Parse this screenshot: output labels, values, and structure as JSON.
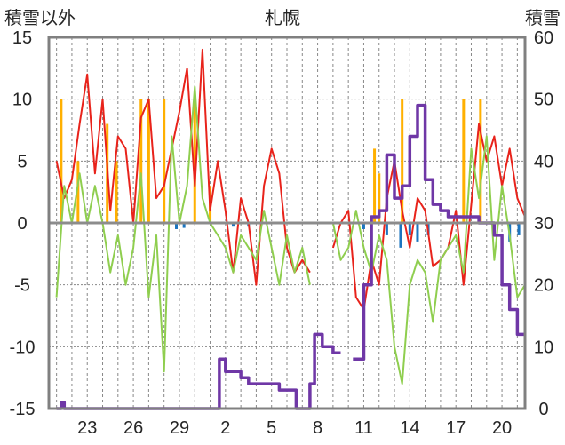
{
  "chart_data": {
    "type": "line",
    "title": "札幌",
    "ylabel_left": "積雪以外",
    "ylabel_right": "積雪",
    "ylim_left": [
      -15,
      15
    ],
    "ylim_right": [
      0,
      60
    ],
    "yticks_left": [
      "15",
      "10",
      "5",
      "0",
      "-5",
      "-10",
      "-15"
    ],
    "yticks_right": [
      "60",
      "50",
      "40",
      "30",
      "20",
      "10",
      "0"
    ],
    "x_tick_labels": [
      "23",
      "26",
      "29",
      "2",
      "5",
      "8",
      "11",
      "14",
      "17",
      "20"
    ],
    "x_tick_days": [
      2,
      5,
      8,
      11,
      14,
      17,
      20,
      23,
      26,
      29
    ],
    "days_total": 31,
    "grid": true,
    "colors": {
      "red": "#e8231b",
      "green": "#8fce4f",
      "purple": "#6f37a6",
      "orange": "#ffb000",
      "blue": "#1b75c0",
      "grid": "#888888",
      "frame": "#808080",
      "zero": "#8c8c8c"
    },
    "series": [
      {
        "color": "red",
        "axis": "left",
        "x": [
          0.0,
          0.5,
          1.0,
          1.5,
          2.0,
          2.5,
          3.0,
          3.5,
          4.0,
          4.5,
          5.0,
          5.5,
          6.0,
          6.5,
          7.0,
          7.5,
          8.0,
          8.5,
          9.0,
          9.5,
          10.0,
          10.5,
          11.0,
          11.5,
          12.0,
          12.5,
          13.0,
          13.5,
          14.0,
          14.5,
          15.0,
          15.5,
          16.0,
          16.5,
          17.0,
          17.5,
          18.0,
          18.5,
          19.0,
          19.5,
          20.0,
          20.5,
          21.0,
          21.5,
          22.0,
          22.5,
          23.0,
          23.5,
          24.0,
          24.5,
          25.0,
          25.5,
          26.0,
          26.5,
          27.0,
          27.5,
          28.0,
          28.5,
          29.0,
          29.5,
          30.0,
          30.5
        ],
        "y": [
          5.0,
          2.0,
          3.5,
          8.0,
          12.0,
          4.0,
          10.0,
          1.0,
          7.0,
          6.0,
          0.0,
          8.5,
          10.0,
          2.0,
          3.0,
          6.0,
          9.0,
          12.5,
          3.0,
          14.0,
          1.0,
          5.0,
          1.0,
          -4.0,
          2.0,
          0.0,
          -5.0,
          3.0,
          6.0,
          4.0,
          -2.0,
          -4.0,
          -3.0,
          -4.0,
          null,
          null,
          -2.0,
          0.0,
          1.0,
          -6.0,
          -7.0,
          -3.0,
          -5.0,
          2.0,
          5.0,
          1.0,
          -2.0,
          2.0,
          1.0,
          -3.5,
          -3.0,
          -2.0,
          1.0,
          -5.0,
          1.5,
          8.0,
          5.0,
          7.0,
          3.0,
          6.0,
          2.0,
          0.5
        ]
      },
      {
        "color": "green",
        "axis": "left",
        "x": [
          0.0,
          0.5,
          1.0,
          1.5,
          2.0,
          2.5,
          3.0,
          3.5,
          4.0,
          4.5,
          5.0,
          5.5,
          6.0,
          6.5,
          7.0,
          7.5,
          8.0,
          8.5,
          9.0,
          9.5,
          10.0,
          10.5,
          11.0,
          11.5,
          12.0,
          12.5,
          13.0,
          13.5,
          14.0,
          14.5,
          15.0,
          15.5,
          16.0,
          16.5,
          17.0,
          17.5,
          18.0,
          18.5,
          19.0,
          19.5,
          20.0,
          20.5,
          21.0,
          21.5,
          22.0,
          22.5,
          23.0,
          23.5,
          24.0,
          24.5,
          25.0,
          25.5,
          26.0,
          26.5,
          27.0,
          27.5,
          28.0,
          28.5,
          29.0,
          29.5,
          30.0,
          30.5
        ],
        "y": [
          -6.0,
          3.0,
          0.0,
          4.0,
          0.0,
          3.0,
          0.0,
          -4.0,
          -1.0,
          -5.0,
          -2.0,
          4.0,
          -6.0,
          -1.0,
          -12.0,
          7.0,
          0.0,
          3.0,
          11.0,
          2.0,
          0.0,
          -1.0,
          -2.0,
          -4.0,
          -1.0,
          -2.0,
          -3.0,
          1.0,
          -2.0,
          -5.0,
          -1.0,
          -4.0,
          -2.0,
          -5.0,
          null,
          null,
          0.0,
          -3.0,
          -2.0,
          1.0,
          -2.0,
          -4.0,
          -1.0,
          -3.0,
          -10.0,
          -13.0,
          -5.0,
          -3.0,
          -4.0,
          -8.0,
          -3.0,
          -2.0,
          -1.0,
          -4.0,
          6.0,
          2.0,
          7.0,
          -3.0,
          3.0,
          -1.0,
          -6.0,
          -5.0
        ]
      },
      {
        "color": "purple",
        "axis": "right",
        "x": [
          0.0,
          0.3,
          0.5,
          10.5,
          10.6,
          11.0,
          12.0,
          12.5,
          14.0,
          14.5,
          15.0,
          15.6,
          16.2,
          16.5,
          16.8,
          17.3,
          17.6,
          18.0,
          18.5,
          19.0,
          19.3,
          20.0,
          20.5,
          21.0,
          21.5,
          22.0,
          22.5,
          23.0,
          23.5,
          24.0,
          24.5,
          25.0,
          25.5,
          26.0,
          26.5,
          27.0,
          27.5,
          28.0,
          28.5,
          29.0,
          29.5,
          30.0,
          30.5
        ],
        "y": [
          0.0,
          1.0,
          0.0,
          0.0,
          8.0,
          6.0,
          5.0,
          4.0,
          4.0,
          3.0,
          3.0,
          0.0,
          0.0,
          4.0,
          12.0,
          10.0,
          10.0,
          9.0,
          9.0,
          null,
          8.0,
          20.0,
          31.0,
          32.0,
          41.0,
          34.0,
          36.0,
          44.0,
          49.0,
          37.0,
          33.0,
          32.0,
          31.0,
          31.0,
          31.0,
          31.0,
          30.0,
          30.0,
          28.0,
          20.0,
          16.0,
          12.0,
          12.0
        ]
      }
    ],
    "bars_orange": {
      "axis": "left",
      "x": [
        0.3,
        1.4,
        3.3,
        3.9,
        5.5,
        6.0,
        7.0,
        9.0,
        10.0,
        20.7,
        21.0,
        22.5,
        26.5,
        27.6
      ],
      "y": [
        10.0,
        5.0,
        8.0,
        5.0,
        10.0,
        10.0,
        10.0,
        10.0,
        3.0,
        6.0,
        4.0,
        10.0,
        10.0,
        10.0
      ]
    },
    "bars_blue": {
      "axis": "left",
      "x": [
        7.8,
        8.3,
        11.5,
        12.5,
        20.0,
        21.5,
        22.4,
        23.0,
        23.5,
        24.2,
        29.5,
        30.1
      ],
      "y": [
        -0.5,
        -0.4,
        -0.3,
        -0.3,
        -0.5,
        -1.0,
        -2.0,
        -1.0,
        -1.5,
        -1.0,
        -1.5,
        -1.0
      ]
    }
  }
}
